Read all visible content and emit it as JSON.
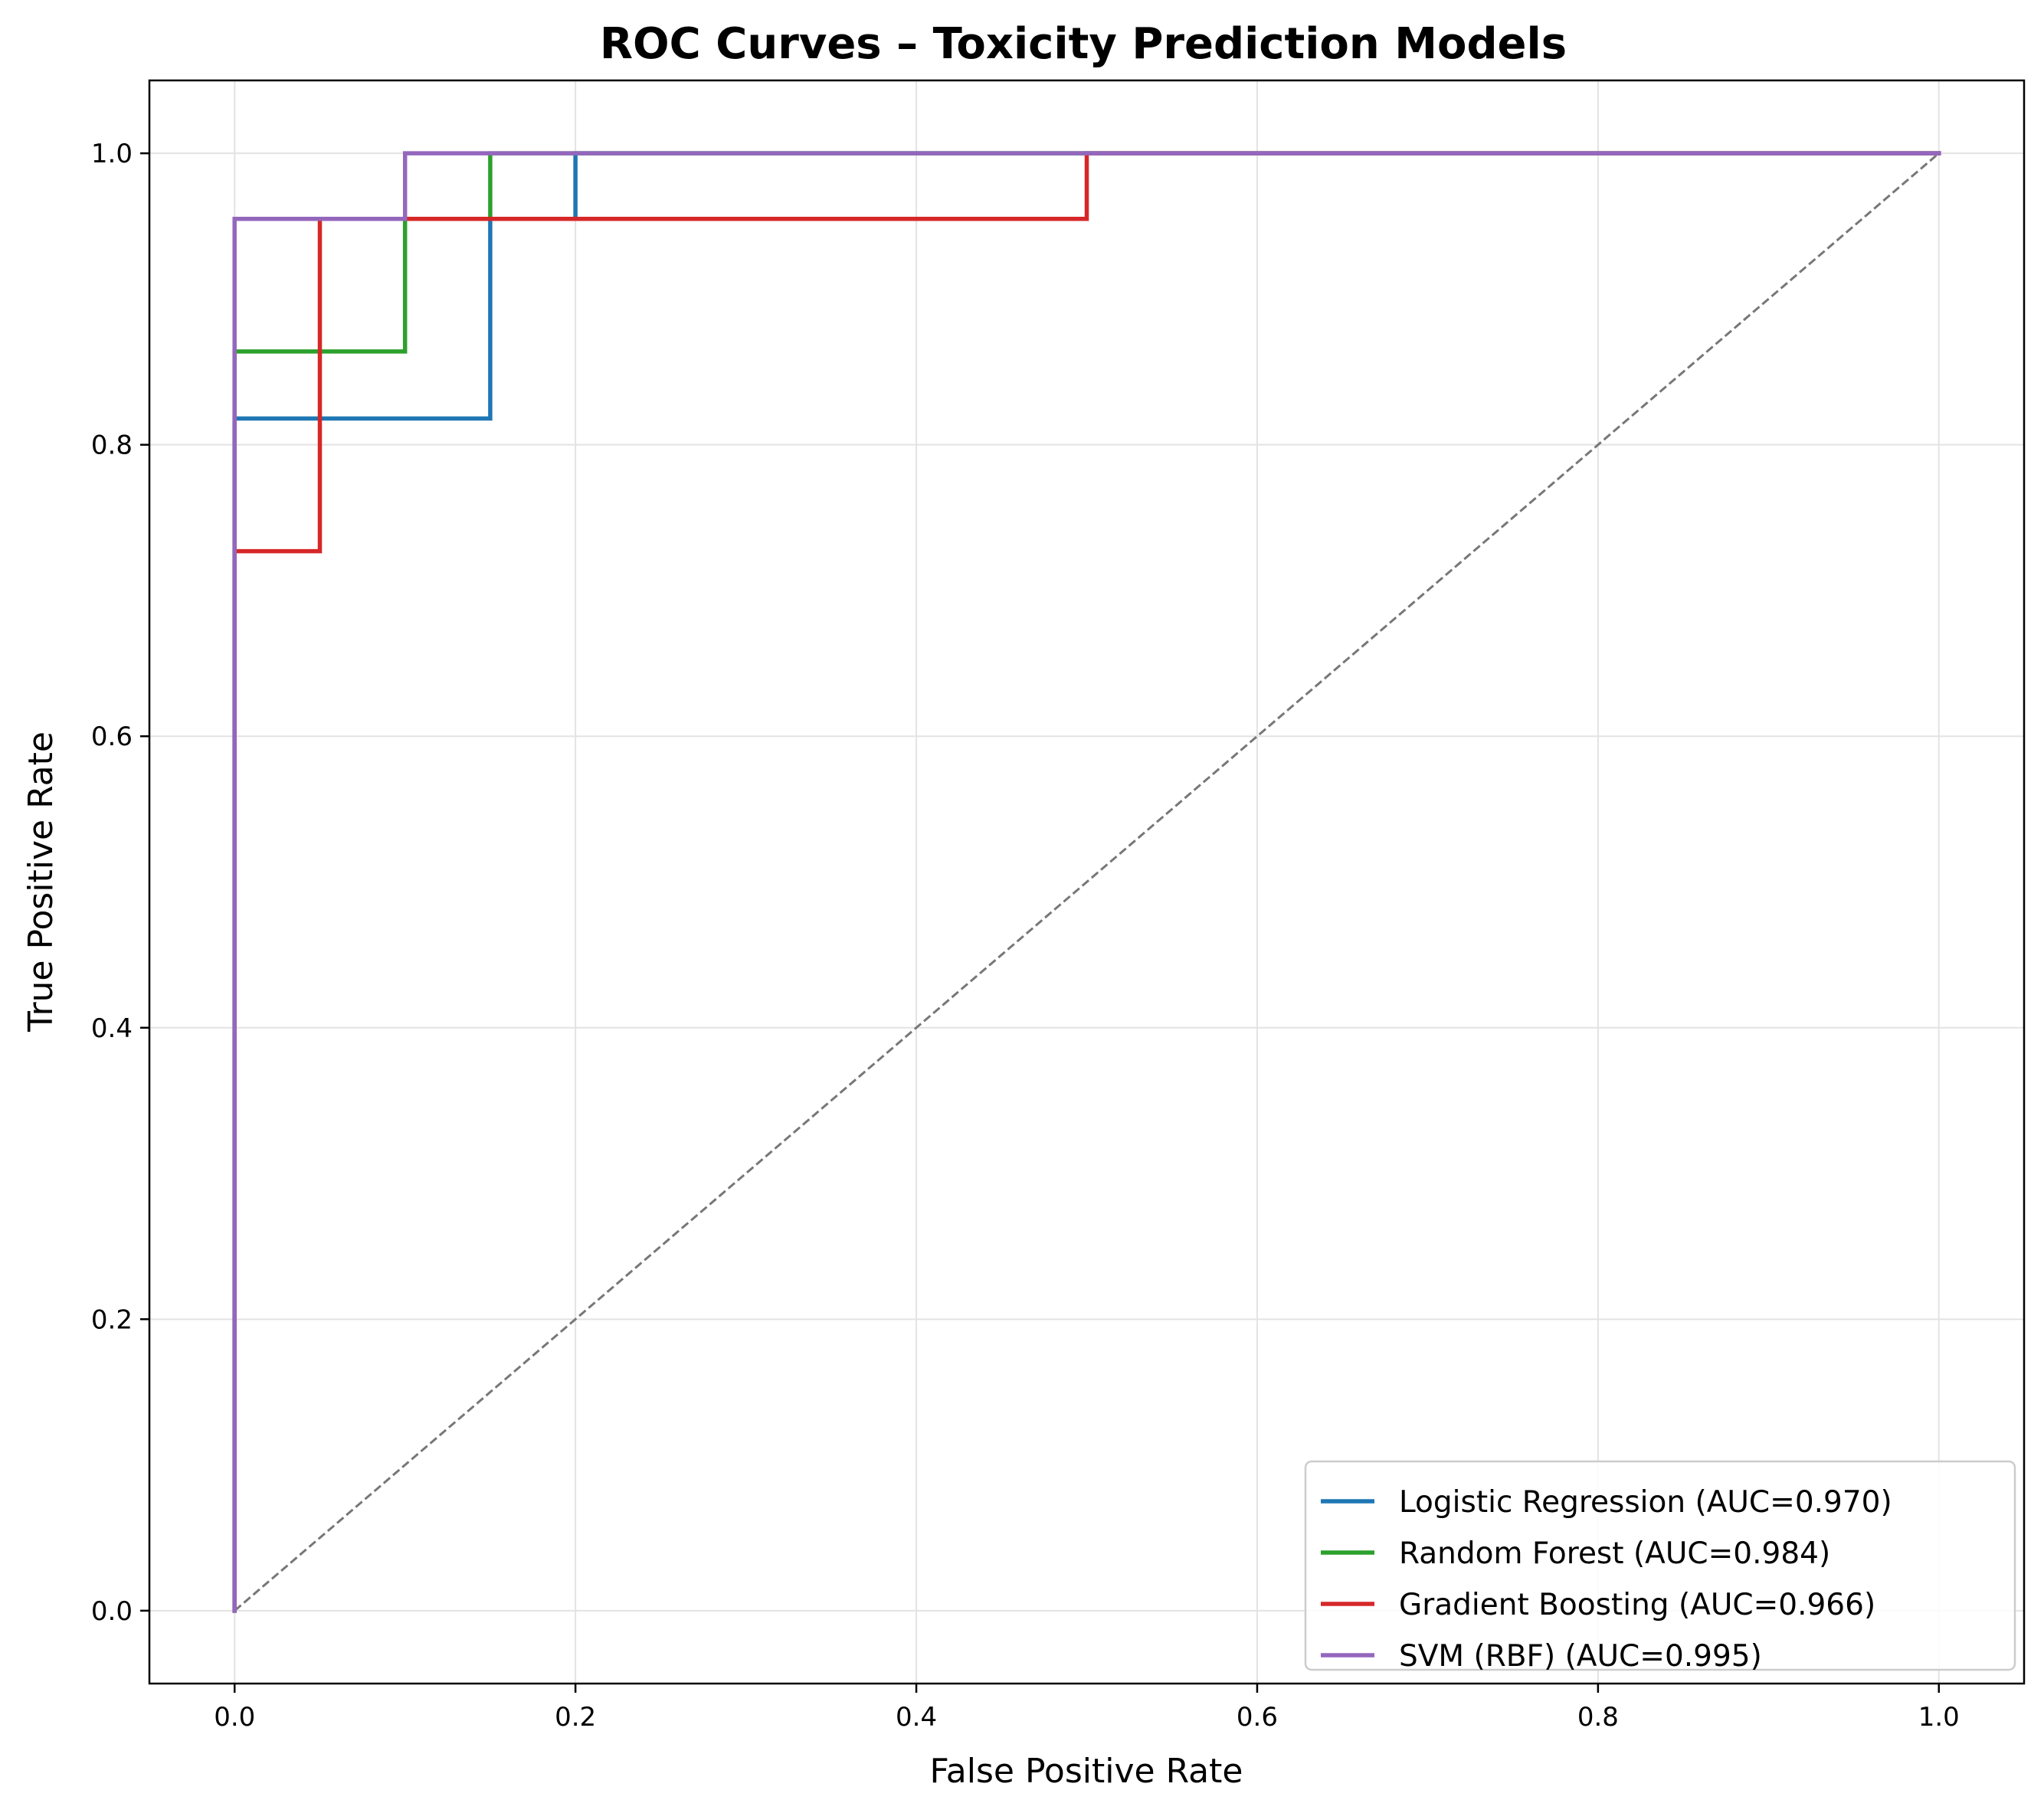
{
  "chart_data": {
    "type": "line",
    "title": "ROC Curves – Toxicity Prediction Models",
    "xlabel": "False Positive Rate",
    "ylabel": "True Positive Rate",
    "xlim": [
      -0.05,
      1.05
    ],
    "ylim": [
      -0.05,
      1.05
    ],
    "xticks": [
      0.0,
      0.2,
      0.4,
      0.6,
      0.8,
      1.0
    ],
    "yticks": [
      0.0,
      0.2,
      0.4,
      0.6,
      0.8,
      1.0
    ],
    "xtick_labels": [
      "0.0",
      "0.2",
      "0.4",
      "0.6",
      "0.8",
      "1.0"
    ],
    "ytick_labels": [
      "0.0",
      "0.2",
      "0.4",
      "0.6",
      "0.8",
      "1.0"
    ],
    "grid": true,
    "legend_position": "lower-right",
    "series": [
      {
        "name": "Logistic Regression (AUC=0.970)",
        "color": "#1f77b4",
        "x": [
          0,
          0,
          0,
          0.15,
          0.15,
          0.2,
          0.2,
          1.0
        ],
        "y": [
          0,
          0.045,
          0.818,
          0.818,
          0.955,
          0.955,
          1.0,
          1.0
        ]
      },
      {
        "name": "Random Forest (AUC=0.984)",
        "color": "#2ca02c",
        "x": [
          0,
          0,
          0.1,
          0.1,
          0.15,
          0.15,
          1.0
        ],
        "y": [
          0,
          0.864,
          0.864,
          0.955,
          0.955,
          1.0,
          1.0
        ]
      },
      {
        "name": "Gradient Boosting (AUC=0.966)",
        "color": "#d62728",
        "x": [
          0,
          0,
          0.05,
          0.05,
          0.5,
          0.5,
          1.0
        ],
        "y": [
          0,
          0.727,
          0.727,
          0.955,
          0.955,
          1.0,
          1.0
        ]
      },
      {
        "name": "SVM (RBF) (AUC=0.995)",
        "color": "#9467bd",
        "x": [
          0,
          0,
          0.1,
          0.1,
          1.0
        ],
        "y": [
          0,
          0.955,
          0.955,
          1.0,
          1.0
        ]
      }
    ],
    "reference_line": {
      "x": [
        0,
        1
      ],
      "y": [
        0,
        1
      ],
      "color": "#777777",
      "style": "dashed"
    }
  }
}
